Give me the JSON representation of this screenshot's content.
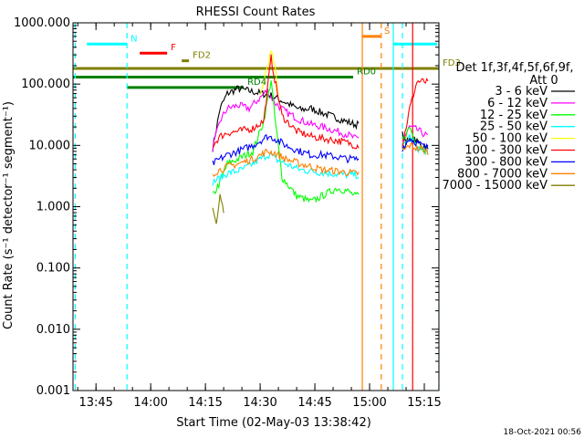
{
  "chart_data": {
    "type": "line",
    "title": "RHESSI Count Rates",
    "xlabel": "Start Time (02-May-03 13:38:42)",
    "ylabel": "Count Rate (s⁻¹ detector⁻¹ segment⁻¹)",
    "x_ticks": [
      "13:45",
      "14:00",
      "14:15",
      "14:30",
      "14:45",
      "15:00",
      "15:15"
    ],
    "y_ticks": [
      "0.001",
      "0.010",
      "0.100",
      "1.000",
      "10.000",
      "100.000",
      "1000.000"
    ],
    "ylim": [
      0.001,
      1000
    ],
    "y_scale": "log",
    "xlim_minutes_after_1330": [
      8.7,
      109
    ],
    "legend_header": [
      "Det 1f,3f,4f,5f,6f,9f,",
      "Att 0"
    ],
    "series": [
      {
        "name": "3 - 6 keV",
        "color": "#000000",
        "points": [
          [
            47,
            9
          ],
          [
            49,
            40
          ],
          [
            51,
            70
          ],
          [
            54,
            85
          ],
          [
            58,
            75
          ],
          [
            63,
            65
          ],
          [
            67,
            50
          ],
          [
            71,
            38
          ],
          [
            74,
            40
          ],
          [
            77,
            34
          ],
          [
            81,
            28
          ],
          [
            84,
            24
          ],
          [
            86,
            22
          ],
          [
            87,
            22
          ]
        ],
        "points2": [
          [
            99,
            15
          ],
          [
            100,
            11
          ],
          [
            102,
            14
          ],
          [
            104,
            10
          ],
          [
            106,
            9
          ]
        ]
      },
      {
        "name": "6 - 12 keV",
        "color": "#ff00ff",
        "points": [
          [
            47,
            9
          ],
          [
            49,
            25
          ],
          [
            51,
            40
          ],
          [
            54,
            45
          ],
          [
            57,
            40
          ],
          [
            60,
            60
          ],
          [
            62,
            80
          ],
          [
            64,
            50
          ],
          [
            67,
            35
          ],
          [
            71,
            26
          ],
          [
            74,
            22
          ],
          [
            77,
            20
          ],
          [
            81,
            17
          ],
          [
            84,
            15
          ],
          [
            86,
            13
          ],
          [
            87,
            13
          ]
        ],
        "points2": [
          [
            99,
            12
          ],
          [
            101,
            20
          ],
          [
            103,
            18
          ],
          [
            106,
            14
          ]
        ]
      },
      {
        "name": "12 - 25 keV",
        "color": "#00ff00",
        "points": [
          [
            47,
            1.5
          ],
          [
            49,
            2.5
          ],
          [
            51,
            5
          ],
          [
            54,
            6
          ],
          [
            58,
            8
          ],
          [
            61,
            25
          ],
          [
            63,
            120
          ],
          [
            64,
            30
          ],
          [
            66,
            3
          ],
          [
            70,
            1.5
          ],
          [
            74,
            1.2
          ],
          [
            77,
            1.5
          ],
          [
            81,
            2
          ],
          [
            84,
            1.8
          ],
          [
            86,
            1.5
          ],
          [
            87,
            1.5
          ]
        ],
        "points2": [
          [
            99,
            12
          ],
          [
            101,
            20
          ],
          [
            103,
            10
          ],
          [
            106,
            8
          ]
        ]
      },
      {
        "name": "25 - 50 keV",
        "color": "#00ffff",
        "points": [
          [
            47,
            2.5
          ],
          [
            51,
            3.5
          ],
          [
            55,
            4
          ],
          [
            58,
            5
          ],
          [
            60,
            6
          ],
          [
            62,
            7
          ],
          [
            63,
            7
          ],
          [
            64,
            6
          ],
          [
            67,
            5
          ],
          [
            71,
            4
          ],
          [
            74,
            3.8
          ],
          [
            77,
            3.6
          ],
          [
            81,
            3.4
          ],
          [
            84,
            3.3
          ],
          [
            86,
            3.3
          ],
          [
            87,
            3.2
          ]
        ],
        "points2": [
          [
            99,
            9
          ],
          [
            101,
            14
          ],
          [
            103,
            9
          ],
          [
            106,
            8
          ]
        ]
      },
      {
        "name": "50 - 100 keV",
        "color": "#ffff00",
        "points": [
          [
            60,
            60
          ],
          [
            62,
            200
          ],
          [
            63,
            330
          ],
          [
            64,
            200
          ],
          [
            65,
            60
          ]
        ],
        "points2": []
      },
      {
        "name": "100 - 300 keV",
        "color": "#ff0000",
        "points": [
          [
            47,
            10
          ],
          [
            49,
            14
          ],
          [
            51,
            16
          ],
          [
            54,
            17
          ],
          [
            58,
            19
          ],
          [
            61,
            25
          ],
          [
            63,
            270
          ],
          [
            64,
            120
          ],
          [
            66,
            30
          ],
          [
            70,
            17
          ],
          [
            74,
            14
          ],
          [
            77,
            13
          ],
          [
            81,
            12
          ],
          [
            84,
            11
          ],
          [
            86,
            10
          ],
          [
            87,
            10
          ]
        ],
        "points2": [
          [
            99,
            10
          ],
          [
            101,
            40
          ],
          [
            103,
            110
          ],
          [
            105,
            110
          ],
          [
            106,
            105
          ]
        ]
      },
      {
        "name": "300 - 800 keV",
        "color": "#0000ff",
        "points": [
          [
            47,
            5
          ],
          [
            49,
            6
          ],
          [
            51,
            7
          ],
          [
            54,
            8
          ],
          [
            58,
            10
          ],
          [
            62,
            14
          ],
          [
            64,
            13
          ],
          [
            67,
            10
          ],
          [
            71,
            8
          ],
          [
            74,
            7
          ],
          [
            77,
            7
          ],
          [
            81,
            6.5
          ],
          [
            84,
            6
          ],
          [
            86,
            6
          ],
          [
            87,
            6
          ]
        ],
        "points2": [
          [
            99,
            9
          ],
          [
            101,
            13
          ],
          [
            103,
            11
          ],
          [
            106,
            9
          ]
        ]
      },
      {
        "name": "800 - 7000 keV",
        "color": "#ff7f00",
        "points": [
          [
            47,
            3.5
          ],
          [
            49,
            4
          ],
          [
            51,
            4.5
          ],
          [
            54,
            5
          ],
          [
            58,
            6
          ],
          [
            62,
            8
          ],
          [
            64,
            7.5
          ],
          [
            67,
            6
          ],
          [
            71,
            5
          ],
          [
            74,
            4.5
          ],
          [
            77,
            4
          ],
          [
            81,
            3.8
          ],
          [
            84,
            3.6
          ],
          [
            86,
            3.5
          ],
          [
            87,
            3.5
          ]
        ],
        "points2": [
          [
            99,
            8
          ],
          [
            101,
            10
          ],
          [
            103,
            9
          ],
          [
            106,
            8
          ]
        ]
      },
      {
        "name": "7000 - 15000 keV",
        "color": "#7f7f00",
        "points": [
          [
            47,
            0.9
          ],
          [
            48,
            0.6
          ],
          [
            49,
            1.4
          ],
          [
            50,
            0.9
          ]
        ],
        "points2": []
      }
    ],
    "annotations": [
      {
        "label": "N",
        "color": "#00ffff",
        "x1": 12.5,
        "x2": 23.5,
        "y": 450,
        "gap_after_x": 96.5,
        "x3": 108.5
      },
      {
        "label": "F",
        "color": "#ff0000",
        "x1": 27,
        "x2": 34.5,
        "y": 320
      },
      {
        "label": "FD2",
        "color": "#7f7f00",
        "x1": 38.5,
        "x2": 40.5,
        "y": 240
      },
      {
        "label": "FD3",
        "color": "#7f7f00",
        "x1": 8.7,
        "x2": 109,
        "y": 180
      },
      {
        "label": "RD0",
        "color": "#007f00",
        "x1": 8.7,
        "x2": 85.5,
        "y": 130
      },
      {
        "label": "RD4",
        "color": "#007f00",
        "x1": 23.5,
        "x2": 55.5,
        "y": 88
      },
      {
        "label": "S",
        "color": "#ff7f00",
        "x1": 88,
        "x2": 93,
        "y": 600
      }
    ],
    "vlines": [
      {
        "x": 9.3,
        "color": "#00ffff",
        "style": "dashed"
      },
      {
        "x": 23.5,
        "color": "#00ffff",
        "style": "dashed"
      },
      {
        "x": 88,
        "color": "#ff7f00",
        "style": "solid"
      },
      {
        "x": 93.2,
        "color": "#ff7f00",
        "style": "dashed"
      },
      {
        "x": 96.5,
        "color": "#00ffff",
        "style": "solid"
      },
      {
        "x": 99,
        "color": "#00ffff",
        "style": "dashed"
      },
      {
        "x": 101.8,
        "color": "#ff0000",
        "style": "solid"
      },
      {
        "x": 109,
        "color": "#00ffff",
        "style": "dashed"
      }
    ]
  },
  "footer_date": "18-Oct-2021 00:56"
}
